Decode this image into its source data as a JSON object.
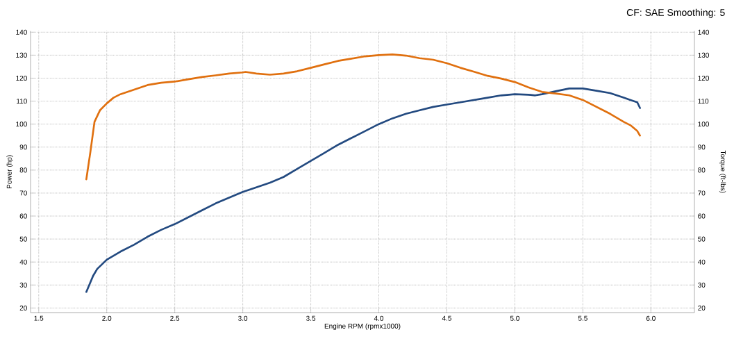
{
  "chart_data": {
    "type": "line",
    "xlabel": "Engine RPM (rpmx1000)",
    "ylabel": "Power (hp)",
    "y2label": "Torque (ft-lbs)",
    "annotations": [
      "CF: SAE Smoothing: 5"
    ],
    "xlim": [
      1.44,
      6.32
    ],
    "ylim": [
      18,
      140.5
    ],
    "y2lim": [
      18,
      140.5
    ],
    "xticks": [
      {
        "value": 1.5,
        "label": "1.5"
      },
      {
        "value": 2,
        "label": "2.0"
      },
      {
        "value": 2.5,
        "label": "2.5"
      },
      {
        "value": 3,
        "label": "3.0"
      },
      {
        "value": 3.5,
        "label": "3.5"
      },
      {
        "value": 4,
        "label": "4.0"
      },
      {
        "value": 4.5,
        "label": "4.5"
      },
      {
        "value": 5,
        "label": "5.0"
      },
      {
        "value": 5.5,
        "label": "5.5"
      },
      {
        "value": 6,
        "label": "6.0"
      }
    ],
    "yticks": [
      20,
      30,
      40,
      50,
      60,
      70,
      80,
      90,
      100,
      110,
      120,
      130,
      140
    ],
    "y2ticks": [
      20,
      30,
      40,
      50,
      60,
      70,
      80,
      90,
      100,
      110,
      120,
      130,
      140
    ],
    "grid": true,
    "line_style": "solid",
    "series": [
      {
        "color": "#234a80",
        "x": [
          1.85,
          1.9,
          1.93,
          2.0,
          2.1,
          2.2,
          2.3,
          2.4,
          2.5,
          2.6,
          2.7,
          2.8,
          2.9,
          3.0,
          3.05,
          3.2,
          3.3,
          3.4,
          3.5,
          3.6,
          3.7,
          3.8,
          3.9,
          4.0,
          4.1,
          4.2,
          4.3,
          4.4,
          4.5,
          4.6,
          4.7,
          4.8,
          4.9,
          5.0,
          5.1,
          5.15,
          5.2,
          5.3,
          5.4,
          5.5,
          5.6,
          5.7,
          5.8,
          5.85,
          5.9,
          5.92
        ],
        "values": [
          27,
          34,
          37,
          41,
          44.5,
          47.5,
          51,
          54,
          56.5,
          59.5,
          62.5,
          65.5,
          68,
          70.5,
          71.5,
          74.5,
          77,
          80.5,
          84,
          87.5,
          91,
          94,
          97,
          100,
          102.5,
          104.5,
          106,
          107.5,
          108.5,
          109.5,
          110.5,
          111.5,
          112.5,
          113,
          112.8,
          112.5,
          113,
          114.3,
          115.5,
          115.5,
          114.5,
          113.5,
          111.5,
          110.5,
          109.5,
          107
        ]
      },
      {
        "color": "#e0700f",
        "axis": "y2",
        "x": [
          1.85,
          1.88,
          1.91,
          1.95,
          2.0,
          2.05,
          2.1,
          2.2,
          2.3,
          2.4,
          2.5,
          2.6,
          2.7,
          2.8,
          2.9,
          3.0,
          3.02,
          3.1,
          3.2,
          3.3,
          3.4,
          3.5,
          3.6,
          3.7,
          3.8,
          3.9,
          4.0,
          4.1,
          4.2,
          4.3,
          4.4,
          4.5,
          4.6,
          4.7,
          4.8,
          4.9,
          5.0,
          5.1,
          5.2,
          5.3,
          5.4,
          5.5,
          5.6,
          5.7,
          5.8,
          5.85,
          5.9,
          5.92
        ],
        "values": [
          76,
          88,
          101,
          106,
          109,
          111.5,
          113,
          115,
          117,
          118,
          118.5,
          119.5,
          120.5,
          121.2,
          122,
          122.5,
          122.7,
          122,
          121.5,
          122,
          123,
          124.5,
          126,
          127.5,
          128.5,
          129.5,
          130,
          130.3,
          129.8,
          128.7,
          128,
          126.5,
          124.5,
          122.8,
          121,
          119.8,
          118.3,
          116,
          114,
          113.3,
          112.5,
          110.5,
          107.5,
          104.5,
          101,
          99.5,
          97,
          95
        ]
      }
    ]
  }
}
